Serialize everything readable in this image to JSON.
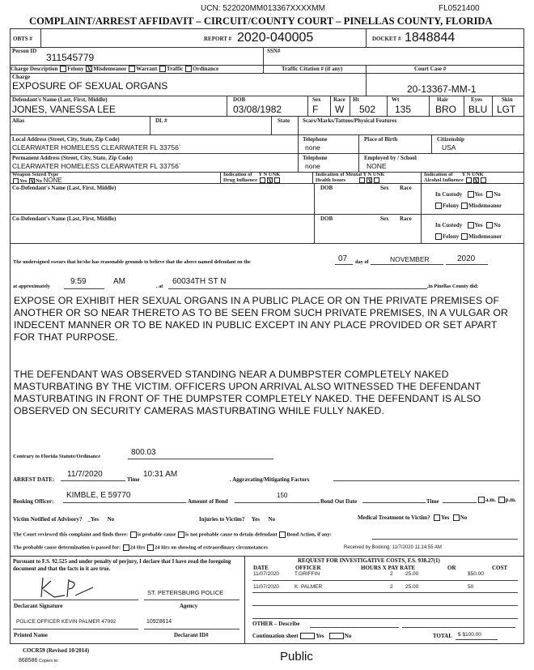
{
  "header": {
    "ucn": "UCN: 522020MM013367XXXXMM",
    "form_code": "FL0521400",
    "title": "COMPLAINT/ARREST AFFIDAVIT – CIRCUIT/COUNTY COURT – PINELLAS COUNTY, FLORIDA"
  },
  "ids": {
    "obts_label": "OBTS #",
    "report_label": "REPORT #",
    "report": "2020-040005",
    "docket_label": "DOCKET #",
    "docket": "1848844",
    "person_id_label": "Person ID",
    "person_id": "311545779",
    "ssn_label": "SSN#"
  },
  "charge_desc": {
    "label": "Charge Description",
    "options": [
      {
        "label": "Felony",
        "checked": false
      },
      {
        "label": "Misdemeanor",
        "checked": true
      },
      {
        "label": "Warrant",
        "checked": false
      },
      {
        "label": "Traffic",
        "checked": false
      },
      {
        "label": "Ordinance",
        "checked": false
      }
    ],
    "traffic_label": "Traffic Citation # (if any)",
    "court_case_label": "Court Case #"
  },
  "charge": {
    "label": "Charge",
    "value": "EXPOSURE OF SEXUAL ORGANS",
    "court_case": "20-13367-MM-1"
  },
  "defendant": {
    "name_label": "Defendant's Name (Last, First, Middle)",
    "name": "JONES, VANESSA LEE",
    "dob_label": "DOB",
    "dob": "03/08/1982",
    "sex_label": "Sex",
    "sex": "F",
    "race_label": "Race",
    "race": "W",
    "ht_label": "Ht",
    "ht": "502",
    "wt_label": "Wt",
    "wt": "135",
    "hair_label": "Hair",
    "hair": "BRO",
    "eyes_label": "Eyes",
    "eyes": "BLU",
    "skin_label": "Skin",
    "skin": "LGT",
    "alias_label": "Alias",
    "dl_label": "DL #",
    "state_label": "State",
    "scars_label": "Scars/Marks/Tattoos/Physical Features"
  },
  "address": {
    "local_label": "Local Address (Street, City, State, Zip Code)",
    "local": "CLEARWATER HOMELESS CLEARWATER FL 33756`",
    "tel_label": "Telephone",
    "tel1": "none",
    "pob_label": "Place of Birth",
    "cit_label": "Citizenship",
    "cit": "USA",
    "perm_label": "Permanent Address (Street, City, State, Zip Code)",
    "perm": "CLEARWATER HOMELESS CLEARWATER FL 33756`",
    "tel2": "none",
    "emp_label": "Employed by / School",
    "emp": "NONE"
  },
  "indicators": {
    "weapon_label": "Weapon Seized",
    "type_label": "Type",
    "yes": "Yes",
    "no": "No",
    "weapon_type": "NONE",
    "weapon_seized": "No",
    "drug_label1": "Indication of",
    "drug_label2": "Drug Influence",
    "mental_label1": "Indication of Mental",
    "mental_label2": "Health Issues",
    "alcohol_label1": "Indication of",
    "alcohol_label2": "Alcohol Influence",
    "y": "Y",
    "n": "N",
    "unk": "UNK",
    "drug": "N",
    "mental": "N",
    "alcohol": "N"
  },
  "codefendant": {
    "name_label": "Co-Defendant's Name (Last, First, Middle)",
    "dob_label": "DOB",
    "sex_label": "Sex",
    "race_label": "Race",
    "custody_label": "In Custody",
    "yes": "Yes",
    "no": "No",
    "felony": "Felony",
    "misd": "Misdemeanor"
  },
  "sworn": {
    "text1": "The undersigned swears that he/she has reasonable grounds to believe that the above named defendant on the",
    "day": "07",
    "day_of": "day of",
    "month": "NOVEMBER",
    "year": "2020",
    "approx": "at approximately",
    "time": "9:59",
    "ampm": "AM",
    "at": ", at",
    "location": "60034TH ST N",
    "county": ",in Pinellas County did:"
  },
  "narrative": {
    "p1": "EXPOSE OR EXHIBIT HER SEXUAL ORGANS IN A PUBLIC PLACE OR ON THE PRIVATE PREMISES OF ANOTHER OR SO NEAR THERETO AS TO BE SEEN FROM SUCH PRIVATE PREMISES, IN A  VULGAR OR INDECENT MANNER OR TO BE NAKED IN PUBLIC EXCEPT IN ANY PLACE PROVIDED OR SET APART FOR THAT PURPOSE.",
    "p2": "THE DEFENDANT WAS OBSERVED STANDING NEAR A DUMBPSTER COMPLETELY NAKED MASTURBATING BY THE VICTIM. OFFICERS UPON ARRIVAL ALSO WITNESSED THE DEFENDANT MASTURBATING IN FRONT OF THE DUMPSTER COMPLETELY NAKED. THE DEFENDANT IS ALSO OBSERVED ON SECURITY CAMERAS MASTURBATING WHILE FULLY NAKED."
  },
  "arrest": {
    "statute_label": "Contrary to Florida Statute/Ordinance",
    "statute": "800.03",
    "date_label": "ARREST DATE:",
    "date": "11/7/2020",
    "time_label": "Time",
    "time": "10:31 AM",
    "agg_label": ". Aggravating/Mitigating Factors",
    "officer_label": "Booking Officer:",
    "officer": "KIMBLE, E 59770",
    "bond_label": "Amount of Bond",
    "bond": "150",
    "bond_out_label": "Bond Out Date",
    "bond_time_label": "Time",
    "am": "a.m.",
    "pm": "p.m.",
    "victim_label": "Victim Notified of Advisory?",
    "injuries_label": "Injuries to Victim?",
    "medical_label": "Medical Treatment to Victim?",
    "yes": "Yes",
    "no": "No",
    "court_text": "The Court reviewed this complaint and finds there:",
    "is_pc": "is probable cause",
    "not_pc": "is not probable cause to detain defendant",
    "bond_action": "Bond Action, if any:",
    "pc_passed": "The probable cause determination is passed for:",
    "h24": "24 Hrs",
    "h24x": "24 Hrs on showing of extraordinary circumstances",
    "received": "Received by Booking: 11/7/2020 11:14:55 AM"
  },
  "declarant": {
    "text": "Pursuant to F.S. 92.525 and under penalty of perjury, I declare that I have read the foregoing document and that the facts in it are true.",
    "agency": "ST. PETERSBURG POLICE",
    "sig_label": "Declarant  Signature",
    "agency_label": "Agency",
    "printed": "POLICE OFFICER KEVIN PALMER 47992",
    "id": "10928614",
    "printed_label": "Printed Name",
    "id_label": "Declarant ID#"
  },
  "costs": {
    "title": "REQUEST FOR INVESTIGATIVE COSTS, F.S. 938.27(1)",
    "headers": [
      "DATE",
      "OFFICER",
      "HOURS X PAY RATE",
      "OR",
      "COST"
    ],
    "rows": [
      {
        "date": "11/07/2020",
        "officer": "T.GRIFFIN",
        "hours": "2",
        "rate": "25.00",
        "cost": "$50.00"
      },
      {
        "date": "11/07/2020",
        "officer": "K. PALMER",
        "hours": "2",
        "rate": "25.00",
        "cost": "50"
      }
    ],
    "other_label": "OTHER – Describe",
    "cont_label": "Continuation sheet",
    "yes": "Yes",
    "no": "No",
    "total_label": "TOTAL",
    "total": "$ $100.00"
  },
  "footer": {
    "form": "COCR59 (Revised  10/2014)",
    "num": "868586",
    "copies": "Copies to:",
    "public": "Public"
  }
}
